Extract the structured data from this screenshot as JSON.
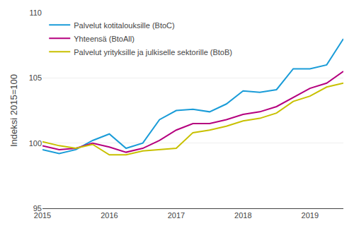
{
  "chart_data": {
    "type": "line",
    "categories": [
      "2015",
      null,
      null,
      null,
      "2016",
      null,
      null,
      null,
      "2017",
      null,
      null,
      null,
      "2018",
      null,
      null,
      null,
      "2019",
      null,
      null
    ],
    "ylabel": "Indeksi 2015=100",
    "ylim": [
      95,
      110
    ],
    "yticks": [
      95,
      100,
      105,
      110
    ],
    "grid": true,
    "legend": "upper left",
    "series": [
      {
        "name": "Palvelut kotitalouksille (BtoC)",
        "color": "#1a9cd8",
        "values": [
          99.5,
          99.2,
          99.5,
          100.2,
          100.7,
          99.6,
          100.0,
          101.8,
          102.5,
          102.6,
          102.4,
          103.0,
          104.0,
          103.9,
          104.1,
          105.7,
          105.7,
          106.0,
          108.0
        ]
      },
      {
        "name": "Yhteensä (BtoAll)",
        "color": "#b5007e",
        "values": [
          99.8,
          99.5,
          99.6,
          100.0,
          99.7,
          99.3,
          99.6,
          100.2,
          101.0,
          101.5,
          101.5,
          101.8,
          102.2,
          102.4,
          102.8,
          103.5,
          104.2,
          104.6,
          105.5
        ]
      },
      {
        "name": "Palvelut yrityksille ja julkiselle sektorille (BtoB)",
        "color": "#c8c000",
        "values": [
          100.1,
          99.8,
          99.6,
          99.9,
          99.1,
          99.1,
          99.4,
          99.5,
          99.6,
          100.8,
          101.0,
          101.3,
          101.7,
          101.9,
          102.3,
          103.2,
          103.6,
          104.3,
          104.6
        ]
      }
    ]
  }
}
